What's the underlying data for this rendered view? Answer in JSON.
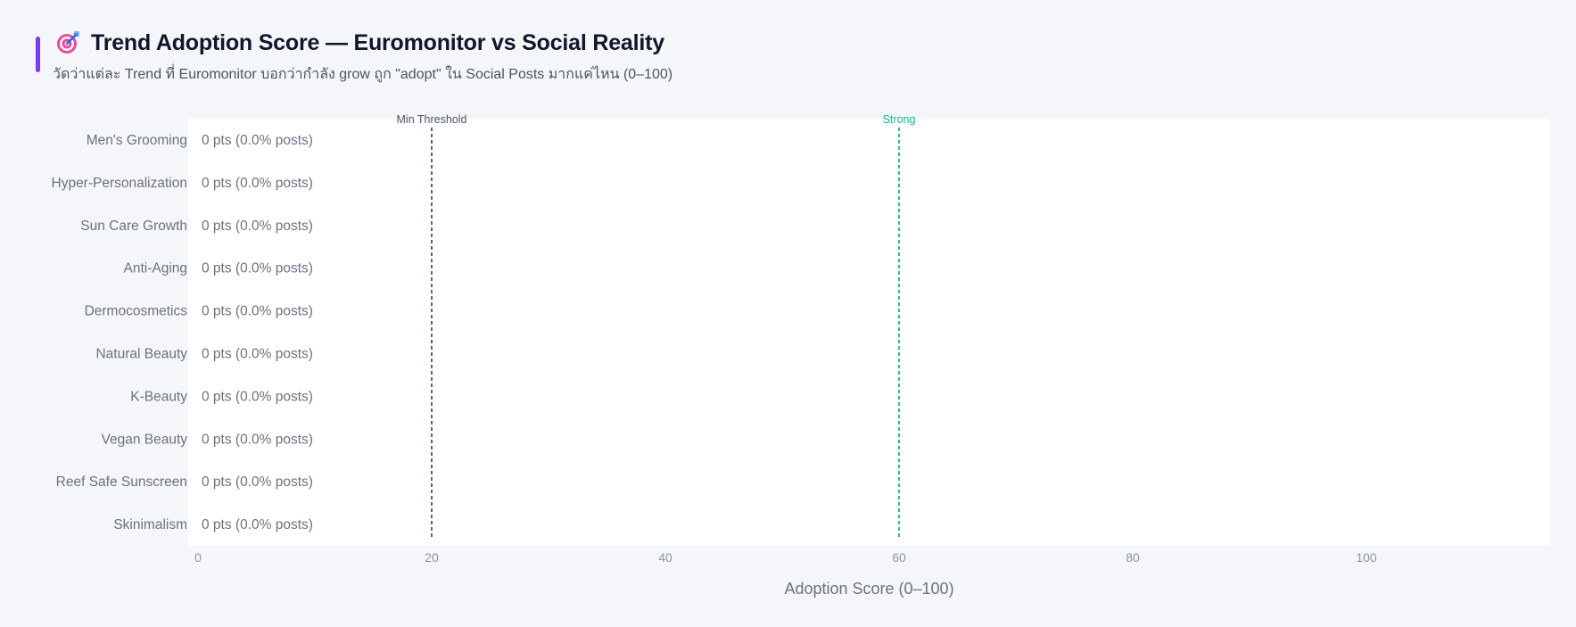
{
  "header": {
    "icon": "target-icon",
    "title": "Trend Adoption Score — Euromonitor vs Social Reality",
    "subtitle": "วัดว่าแต่ละ Trend ที่ Euromonitor บอกว่ากำลัง grow ถูก \"adopt\" ใน Social Posts มากแค่ไหน (0–100)"
  },
  "colors": {
    "accent": "#7c3aed",
    "min_threshold": "#4b5563",
    "strong": "#10b981",
    "plot_bg": "#ffffff",
    "page_bg": "#f5f6fa"
  },
  "chart_data": {
    "type": "bar",
    "orientation": "horizontal",
    "categories": [
      "Men's Grooming",
      "Hyper-Personalization",
      "Sun Care Growth",
      "Anti-Aging",
      "Dermocosmetics",
      "Natural Beauty",
      "K-Beauty",
      "Vegan Beauty",
      "Reef Safe Sunscreen",
      "Skinimalism"
    ],
    "values": [
      0,
      0,
      0,
      0,
      0,
      0,
      0,
      0,
      0,
      0
    ],
    "data_labels": [
      "0 pts  (0.0% posts)",
      "0 pts  (0.0% posts)",
      "0 pts  (0.0% posts)",
      "0 pts  (0.0% posts)",
      "0 pts  (0.0% posts)",
      "0 pts  (0.0% posts)",
      "0 pts  (0.0% posts)",
      "0 pts  (0.0% posts)",
      "0 pts  (0.0% posts)",
      "0 pts  (0.0% posts)"
    ],
    "xlabel": "Adoption Score (0–100)",
    "xlim": [
      0,
      115
    ],
    "xticks": [
      0,
      20,
      40,
      60,
      80,
      100
    ],
    "reference_lines": [
      {
        "value": 20,
        "label": "Min Threshold",
        "color": "#4b5563"
      },
      {
        "value": 60,
        "label": "Strong",
        "color": "#10b981"
      }
    ],
    "grid": false,
    "legend": "none"
  }
}
